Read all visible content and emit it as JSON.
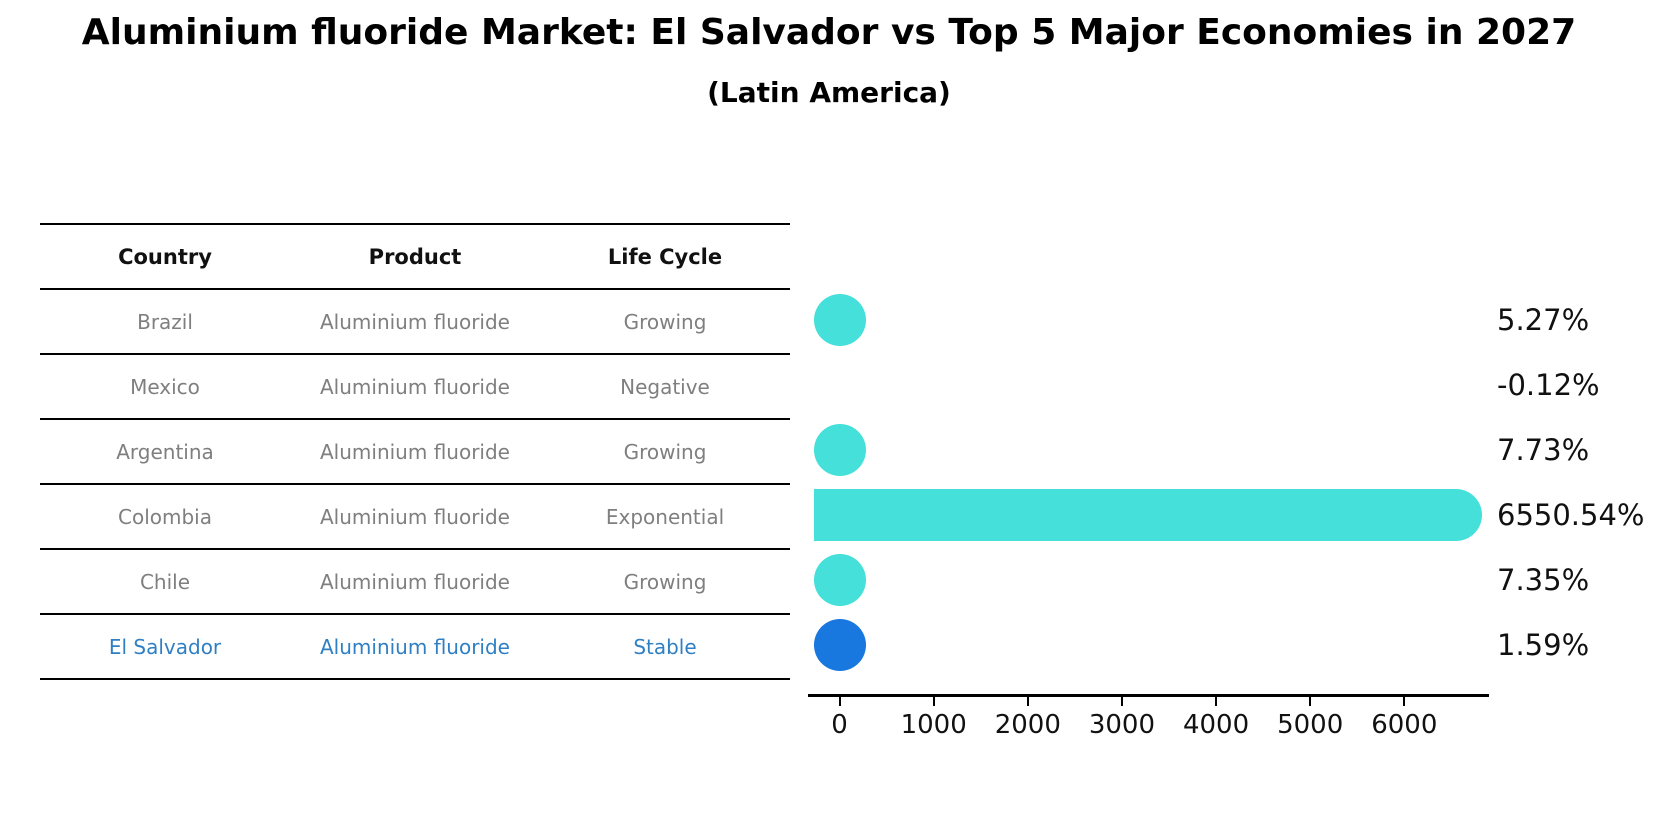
{
  "title": "Aluminium fluoride Market: El Salvador vs Top 5 Major Economies in 2027",
  "subtitle": "(Latin America)",
  "table": {
    "headers": [
      "Country",
      "Product",
      "Life Cycle"
    ],
    "rows": [
      {
        "country": "Brazil",
        "product": "Aluminium fluoride",
        "life_cycle": "Growing",
        "highlight": false
      },
      {
        "country": "Mexico",
        "product": "Aluminium fluoride",
        "life_cycle": "Negative",
        "highlight": false
      },
      {
        "country": "Argentina",
        "product": "Aluminium fluoride",
        "life_cycle": "Growing",
        "highlight": false
      },
      {
        "country": "Colombia",
        "product": "Aluminium fluoride",
        "life_cycle": "Exponential",
        "highlight": false
      },
      {
        "country": "Chile",
        "product": "Aluminium fluoride",
        "life_cycle": "Growing",
        "highlight": false
      },
      {
        "country": "El Salvador",
        "product": "Aluminium fluoride",
        "life_cycle": "Stable",
        "highlight": true
      }
    ]
  },
  "chart_data": {
    "type": "bar",
    "orientation": "horizontal",
    "title": "Aluminium fluoride Market: El Salvador vs Top 5 Major Economies in 2027",
    "subtitle": "(Latin America)",
    "categories": [
      "Brazil",
      "Mexico",
      "Argentina",
      "Colombia",
      "Chile",
      "El Salvador"
    ],
    "values": [
      5.27,
      -0.12,
      7.73,
      6550.54,
      7.35,
      1.59
    ],
    "value_labels": [
      "5.27%",
      "-0.12%",
      "7.73%",
      "6550.54%",
      "7.35%",
      "1.59%"
    ],
    "xticks": [
      0,
      1000,
      2000,
      3000,
      4000,
      5000,
      6000
    ],
    "xlim": [
      -335,
      6900
    ],
    "grid": false,
    "legend": "none",
    "bar_color": "#44e0d9",
    "highlight_color": "#1878e0",
    "highlight_index": 5
  },
  "colors": {
    "bar_cyan": "#44e0d9",
    "bar_blue": "#1878e0",
    "highlight_text": "#2f7fc4",
    "table_text": "#7f7f7f",
    "axis": "#000000"
  }
}
